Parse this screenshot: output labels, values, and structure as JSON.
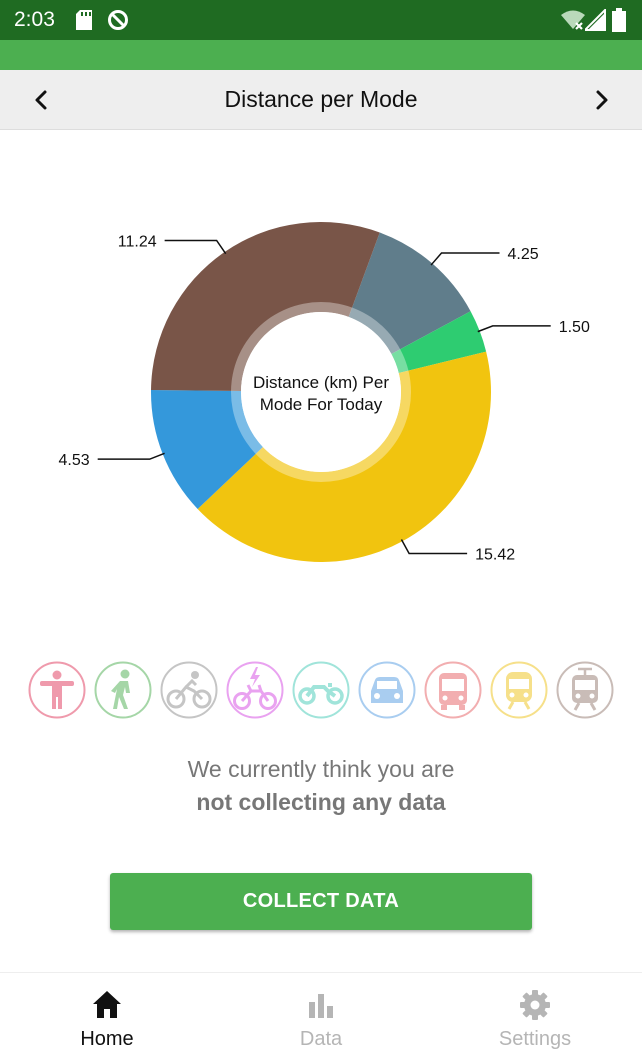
{
  "status_bar": {
    "time": "2:03"
  },
  "header": {
    "title": "Distance per Mode"
  },
  "chart_data": {
    "type": "pie",
    "title": "Distance (km) Per Mode For Today",
    "title_lines": [
      "Distance (km) Per",
      "Mode For Today"
    ],
    "slices": [
      {
        "value": 4.25,
        "label": "4.25",
        "color": "#607d8b"
      },
      {
        "value": 1.5,
        "label": "1.50",
        "color": "#2ecc71"
      },
      {
        "value": 15.42,
        "label": "15.42",
        "color": "#f1c40f"
      },
      {
        "value": 4.53,
        "label": "4.53",
        "color": "#3498db"
      },
      {
        "value": 11.24,
        "label": "11.24",
        "color": "#795548"
      }
    ]
  },
  "modes": [
    {
      "icon": "still-person-icon",
      "color": "#ef9aac"
    },
    {
      "icon": "walking-icon",
      "color": "#a5d6a7"
    },
    {
      "icon": "bicycle-icon",
      "color": "#c5c5c5"
    },
    {
      "icon": "e-bike-icon",
      "color": "#e9a2f0"
    },
    {
      "icon": "motorcycle-icon",
      "color": "#a0e4da"
    },
    {
      "icon": "car-icon",
      "color": "#a9cdf0"
    },
    {
      "icon": "bus-icon",
      "color": "#f2aeb0"
    },
    {
      "icon": "train-icon",
      "color": "#f6e08a"
    },
    {
      "icon": "tram-icon",
      "color": "#c9bcb7"
    }
  ],
  "tracking_state": {
    "line1": "We currently think you are",
    "line2": "not collecting any data"
  },
  "collect_button": {
    "label": "COLLECT DATA"
  },
  "bottom_nav": {
    "tabs": [
      {
        "label": "Home",
        "icon": "home-icon",
        "active": true
      },
      {
        "label": "Data",
        "icon": "bar-chart-icon",
        "active": false
      },
      {
        "label": "Settings",
        "icon": "gear-icon",
        "active": false
      }
    ]
  }
}
